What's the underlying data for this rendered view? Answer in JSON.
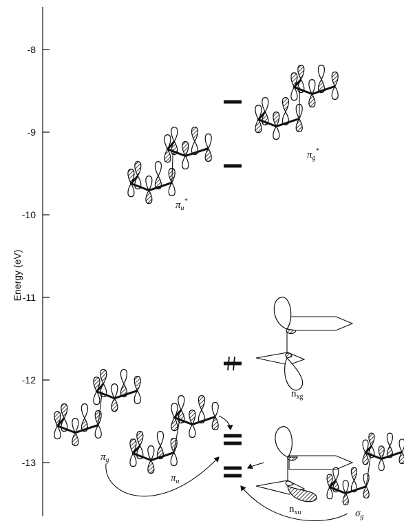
{
  "axis": {
    "title": "Energy (eV)",
    "ticks": [
      {
        "value": -8,
        "label": "-8"
      },
      {
        "value": -9,
        "label": "-9"
      },
      {
        "value": -10,
        "label": "-10"
      },
      {
        "value": -11,
        "label": "-11"
      },
      {
        "value": -12,
        "label": "-12"
      },
      {
        "value": -13,
        "label": "-13"
      }
    ]
  },
  "levels": [
    {
      "id": "pi-g-star",
      "energy": -8.4,
      "label": "π",
      "sub": "g",
      "sup": "*"
    },
    {
      "id": "pi-u-star",
      "energy": -9.15,
      "label": "π",
      "sub": "u",
      "sup": "*"
    },
    {
      "id": "n-xg",
      "energy": -11.6,
      "label": "n",
      "sub": "xg",
      "sup": "",
      "electrons": 2
    },
    {
      "id": "pi-u",
      "energy": -12.55,
      "label": "π",
      "sub": "u",
      "sup": ""
    },
    {
      "id": "n-xu",
      "energy": -12.85,
      "label": "n",
      "sub": "xu",
      "sup": ""
    }
  ],
  "extra_labels": [
    {
      "id": "pi-g",
      "label": "π",
      "sub": "g"
    },
    {
      "id": "sigma-g",
      "label": "σ",
      "sub": "g"
    }
  ]
}
